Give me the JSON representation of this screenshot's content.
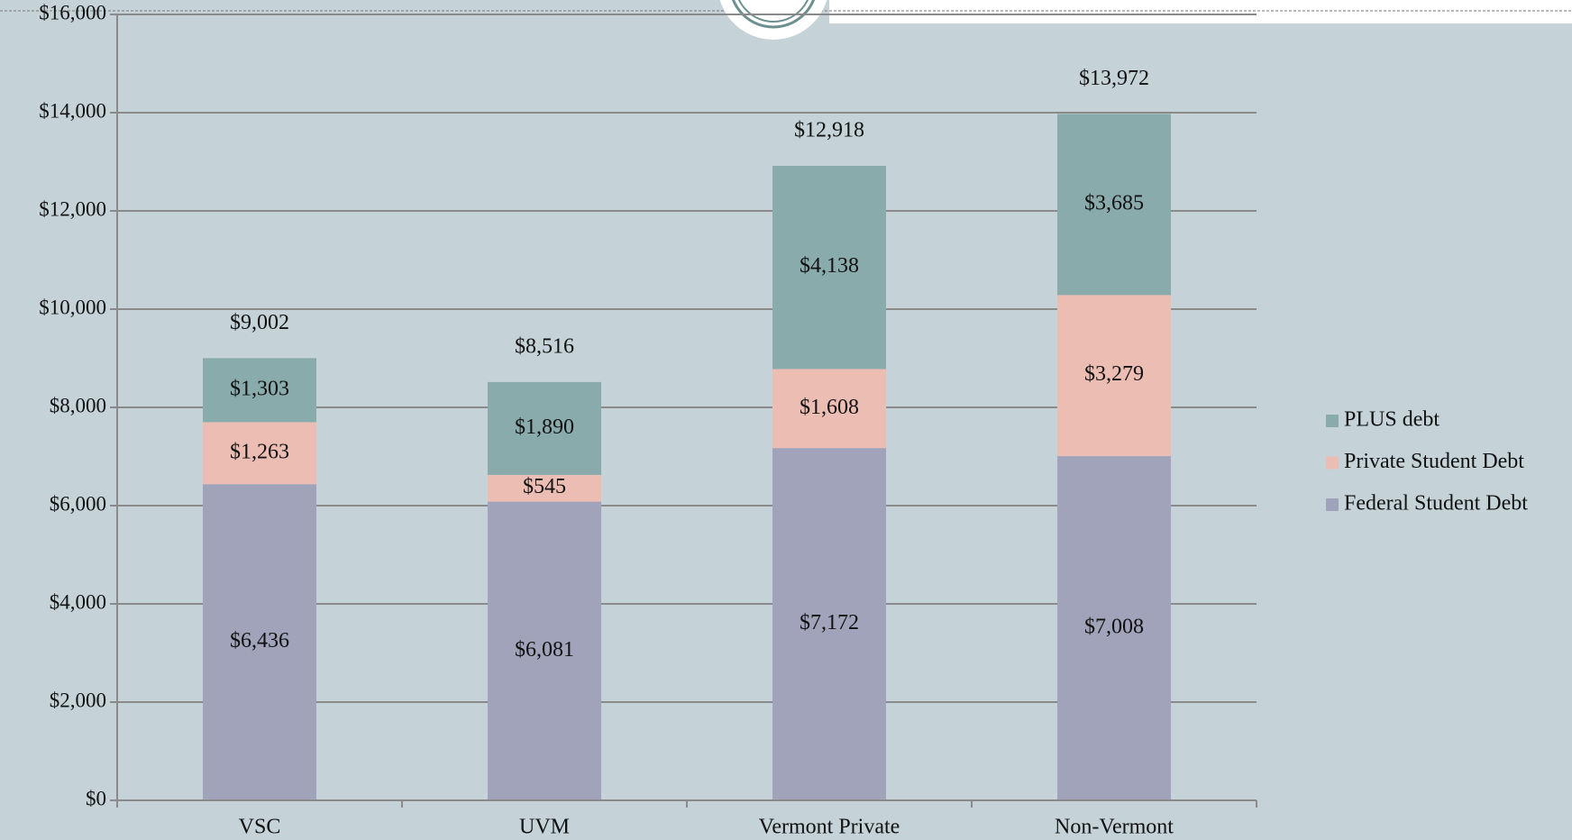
{
  "chart_data": {
    "type": "stacked_bar",
    "categories": [
      "VSC",
      "UVM",
      "Vermont Private",
      "Non-Vermont"
    ],
    "series": [
      {
        "name": "Federal Student Debt",
        "color": "#a0a3b9",
        "values": [
          6436,
          6081,
          7172,
          7008
        ],
        "value_labels": [
          "$6,436",
          "$6,081",
          "$7,172",
          "$7,008"
        ]
      },
      {
        "name": "Private Student Debt",
        "color": "#ecbdb3",
        "values": [
          1263,
          545,
          1608,
          3279
        ],
        "value_labels": [
          "$1,263",
          "$545",
          "$1,608",
          "$3,279"
        ]
      },
      {
        "name": "PLUS debt",
        "color": "#8aabab",
        "values": [
          1303,
          1890,
          4138,
          3685
        ],
        "value_labels": [
          "$1,303",
          "$1,890",
          "$4,138",
          "$3,685"
        ]
      }
    ],
    "totals": [
      9002,
      8516,
      12918,
      13972
    ],
    "total_labels": [
      "$9,002",
      "$8,516",
      "$12,918",
      "$13,972"
    ],
    "ylim": [
      0,
      16000
    ],
    "yticks": [
      {
        "value": 0,
        "label": "$0"
      },
      {
        "value": 2000,
        "label": "$2,000"
      },
      {
        "value": 4000,
        "label": "$4,000"
      },
      {
        "value": 6000,
        "label": "$6,000"
      },
      {
        "value": 8000,
        "label": "$8,000"
      },
      {
        "value": 10000,
        "label": "$10,000"
      },
      {
        "value": 12000,
        "label": "$12,000"
      },
      {
        "value": 14000,
        "label": "$14,000"
      },
      {
        "value": 16000,
        "label": "$16,000"
      }
    ],
    "grid": true,
    "legend": "right"
  }
}
